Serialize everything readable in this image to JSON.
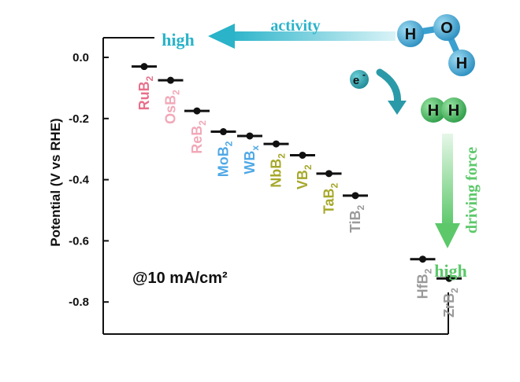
{
  "chart_data": {
    "type": "scatter",
    "ylabel": "Potential (V vs RHE)",
    "ylim": [
      -0.88,
      0.04
    ],
    "yticks": [
      "0.0",
      "-0.2",
      "-0.4",
      "-0.6",
      "-0.8"
    ],
    "ytick_values": [
      0.0,
      -0.2,
      -0.4,
      -0.6,
      -0.8
    ],
    "condition_label": "@10 mA/cm²",
    "points": [
      {
        "material": "RuB",
        "sub": "2",
        "y": -0.03,
        "color": "#e8708a"
      },
      {
        "material": "OsB",
        "sub": "2",
        "y": -0.075,
        "color": "#f2a8b8"
      },
      {
        "material": "ReB",
        "sub": "2",
        "y": -0.175,
        "color": "#f2a8b8"
      },
      {
        "material": "MoB",
        "sub": "2",
        "y": -0.243,
        "color": "#4fa8e6"
      },
      {
        "material": "WB",
        "sub": "x",
        "y": -0.257,
        "color": "#4fa8e6"
      },
      {
        "material": "NbB",
        "sub": "2",
        "y": -0.283,
        "color": "#a6a82a"
      },
      {
        "material": "VB",
        "sub": "2",
        "y": -0.32,
        "color": "#a6a82a"
      },
      {
        "material": "TaB",
        "sub": "2",
        "y": -0.38,
        "color": "#a6a82a"
      },
      {
        "material": "TiB",
        "sub": "2",
        "y": -0.452,
        "color": "#9a9a9a"
      },
      {
        "material": "HfB",
        "sub": "2",
        "y": -0.66,
        "color": "#9a9a9a"
      },
      {
        "material": "ZrB",
        "sub": "2",
        "y": -0.723,
        "color": "#9a9a9a"
      }
    ],
    "annotations": {
      "activity_label": "activity",
      "activity_high": "high",
      "driving_label": "driving force",
      "driving_high": "high",
      "electron_label": "e",
      "electron_sup": "-",
      "water_atoms": [
        "H",
        "O",
        "H"
      ],
      "hydrogen_atoms": [
        "H",
        "H"
      ]
    },
    "colors": {
      "activity": "#2ab3c9",
      "driving": "#5cc86a",
      "atom_blue": "#3aa0cf",
      "atom_green": "#3fb25a",
      "electron": "#2a9aa8"
    }
  }
}
